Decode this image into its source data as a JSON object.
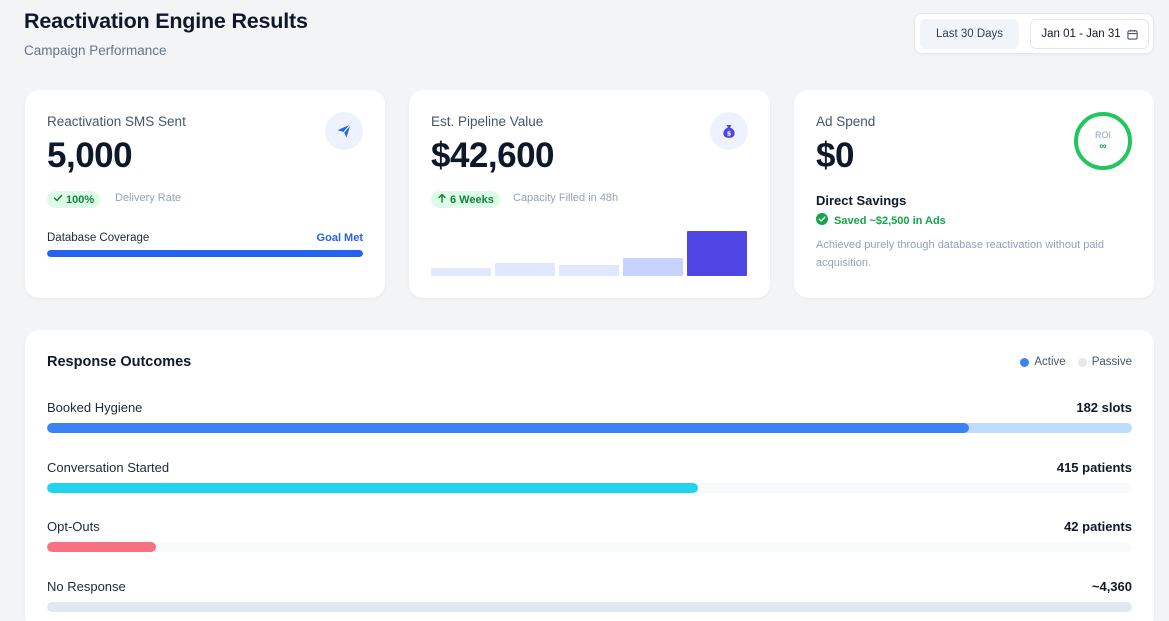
{
  "header": {
    "title": "Reactivation Engine Results",
    "subtitle": "Campaign Performance",
    "range_label": "Last 30 Days",
    "date_label": "Jan 01 - Jan 31"
  },
  "cards": {
    "sms": {
      "label": "Reactivation SMS Sent",
      "value": "5,000",
      "badge": "100%",
      "badge_note": "Delivery Rate",
      "coverage_label": "Database Coverage",
      "coverage_status": "Goal Met",
      "coverage_fraction": 1.0,
      "icon": "paper-plane-icon"
    },
    "pipeline": {
      "label": "Est. Pipeline Value",
      "value": "$42,600",
      "badge": "6 Weeks",
      "badge_note": "Capacity Filled in 48h",
      "icon": "money-bag-icon",
      "mini_bars": [
        0.18,
        0.29,
        0.24,
        0.4,
        1.0
      ]
    },
    "adspend": {
      "label": "Ad Spend",
      "value": "$0",
      "roi_label": "ROI",
      "roi_value": "∞",
      "savings_title": "Direct Savings",
      "savings_badge": "Saved ~$2,500 in Ads",
      "savings_desc": "Achieved purely through database reactivation without paid acquisition."
    }
  },
  "outcomes": {
    "title": "Response Outcomes",
    "legend": [
      {
        "label": "Active",
        "color": "#3b82f6"
      },
      {
        "label": "Passive",
        "color": "#e5e7eb"
      }
    ],
    "rows": [
      {
        "label": "Booked Hygiene",
        "value": "182 slots",
        "fill_fraction": 0.85,
        "color": "#3b82f6",
        "track": "#bfdbfe"
      },
      {
        "label": "Conversation Started",
        "value": "415 patients",
        "fill_fraction": 0.6,
        "color": "#22d3ee",
        "track": "#f8fafc"
      },
      {
        "label": "Opt-Outs",
        "value": "42 patients",
        "fill_fraction": 0.1,
        "color": "#f87183",
        "track": "#f8fafc"
      },
      {
        "label": "No Response",
        "value": "~4,360",
        "fill_fraction": 0,
        "color": "#e2e8f0",
        "track": "#e2e8f0"
      }
    ]
  },
  "colors": {
    "primary": "#2563eb",
    "indigo": "#4f46e5",
    "success": "#22c55e"
  }
}
